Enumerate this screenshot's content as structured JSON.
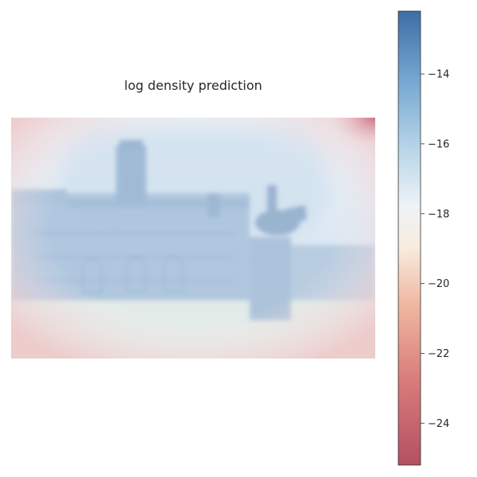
{
  "chart_data": {
    "type": "heatmap",
    "title": "log density prediction",
    "xlabel": "",
    "ylabel": "",
    "grid": false,
    "colorbar": {
      "vmin": -25.2,
      "vmax": -12.2,
      "ticks": [
        -24,
        -22,
        -20,
        -18,
        -16,
        -14
      ],
      "tick_labels": [
        "−24",
        "−22",
        "−20",
        "−18",
        "−16",
        "−14"
      ],
      "colormap": "RdBu",
      "low_color": "#c0394f",
      "mid_color": "#f7f7f7",
      "high_color": "#2f6fb0"
    },
    "overlay": "semi-transparent log density map over a photo of a palace facade with an equestrian statue"
  }
}
